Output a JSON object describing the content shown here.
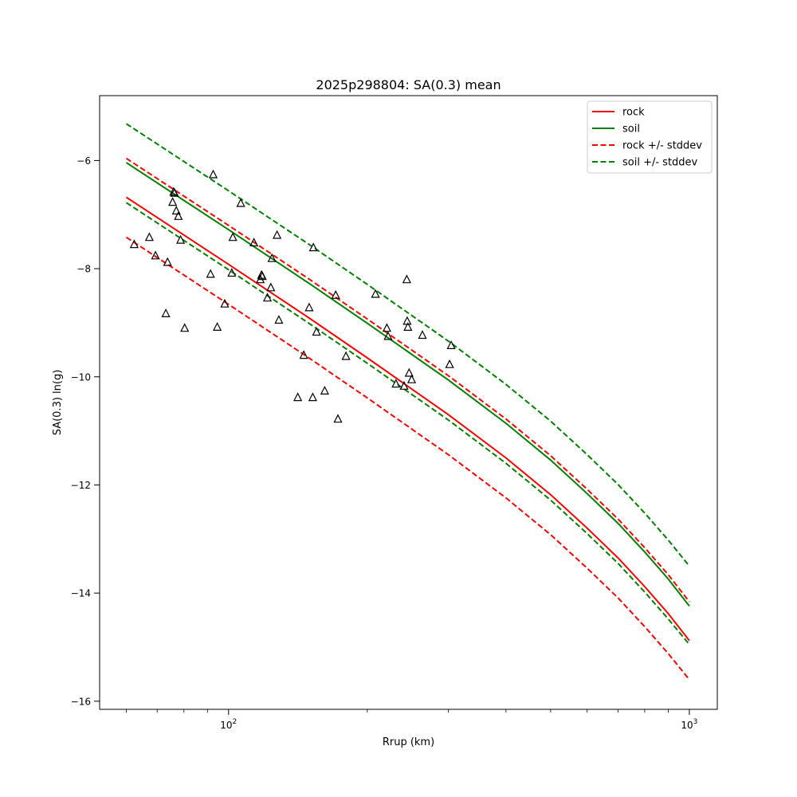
{
  "chart_data": {
    "type": "scatter",
    "title": "2025p298804: SA(0.3) mean",
    "xlabel": "Rrup (km)",
    "ylabel": "SA(0.3) ln(g)",
    "xscale": "log",
    "xlim": [
      52.5,
      1150
    ],
    "ylim": [
      -16.15,
      -4.8
    ],
    "x_tick_labels": [
      {
        "value": 100,
        "base": "10",
        "exp": "2"
      },
      {
        "value": 1000,
        "base": "10",
        "exp": "3"
      }
    ],
    "y_ticks": [
      -16,
      -14,
      -12,
      -10,
      -8,
      -6
    ],
    "y_tick_labels": [
      "−16",
      "−14",
      "−12",
      "−10",
      "−8",
      "−6"
    ],
    "grid": false,
    "legend_position": "top-right",
    "series": [
      {
        "name": "rock",
        "color": "#ff0000",
        "dash": "solid",
        "x": [
          60,
          100,
          150,
          200,
          300,
          400,
          500,
          600,
          700,
          800,
          900,
          1000
        ],
        "y": [
          -6.68,
          -7.92,
          -8.92,
          -9.65,
          -10.7,
          -11.5,
          -12.18,
          -12.8,
          -13.35,
          -13.88,
          -14.38,
          -14.88
        ]
      },
      {
        "name": "soil",
        "color": "#008000",
        "dash": "solid",
        "x": [
          60,
          100,
          150,
          200,
          300,
          400,
          500,
          600,
          700,
          800,
          900,
          1000
        ],
        "y": [
          -6.04,
          -7.28,
          -8.28,
          -9.01,
          -10.06,
          -10.86,
          -11.54,
          -12.16,
          -12.71,
          -13.24,
          -13.74,
          -14.24
        ]
      },
      {
        "name": "rock +/- stddev",
        "color": "#ff0000",
        "dash": "dashed",
        "x": [
          60,
          100,
          150,
          200,
          300,
          400,
          500,
          600,
          700,
          800,
          900,
          1000
        ],
        "y": [
          -5.96,
          -7.2,
          -8.2,
          -8.93,
          -9.98,
          -10.78,
          -11.46,
          -12.08,
          -12.63,
          -13.16,
          -13.66,
          -14.16
        ]
      },
      {
        "name": "",
        "color": "#ff0000",
        "dash": "dashed",
        "x": [
          60,
          100,
          150,
          200,
          300,
          400,
          500,
          600,
          700,
          800,
          900,
          1000
        ],
        "y": [
          -7.42,
          -8.66,
          -9.66,
          -10.39,
          -11.44,
          -12.24,
          -12.92,
          -13.54,
          -14.09,
          -14.62,
          -15.12,
          -15.6
        ]
      },
      {
        "name": "soil +/- stddev",
        "color": "#008000",
        "dash": "dashed",
        "x": [
          60,
          100,
          150,
          200,
          300,
          400,
          500,
          600,
          700,
          800,
          900,
          1000
        ],
        "y": [
          -5.32,
          -6.56,
          -7.56,
          -8.29,
          -9.34,
          -10.14,
          -10.82,
          -11.44,
          -11.99,
          -12.52,
          -13.02,
          -13.5
        ]
      },
      {
        "name": "",
        "color": "#008000",
        "dash": "dashed",
        "x": [
          60,
          100,
          150,
          200,
          300,
          400,
          500,
          600,
          700,
          800,
          900,
          1000
        ],
        "y": [
          -6.78,
          -8.02,
          -9.02,
          -9.75,
          -10.8,
          -11.6,
          -12.28,
          -12.9,
          -13.45,
          -13.98,
          -14.48,
          -14.95
        ]
      }
    ],
    "observations": {
      "marker": "open-triangle",
      "color": "#000000",
      "points": [
        [
          62.4,
          -7.55
        ],
        [
          67.3,
          -7.42
        ],
        [
          69.4,
          -7.76
        ],
        [
          73.1,
          -8.83
        ],
        [
          73.7,
          -7.88
        ],
        [
          75.6,
          -6.77
        ],
        [
          76.0,
          -6.58
        ],
        [
          76.3,
          -6.6
        ],
        [
          77.0,
          -6.93
        ],
        [
          77.8,
          -7.03
        ],
        [
          78.7,
          -7.47
        ],
        [
          80.3,
          -9.1
        ],
        [
          91.4,
          -8.1
        ],
        [
          92.6,
          -6.26
        ],
        [
          94.5,
          -9.08
        ],
        [
          98.1,
          -8.65
        ],
        [
          101.6,
          -8.08
        ],
        [
          102.2,
          -7.42
        ],
        [
          106.3,
          -6.79
        ],
        [
          113.5,
          -7.52
        ],
        [
          117.2,
          -8.2
        ],
        [
          117.9,
          -8.12
        ],
        [
          118.4,
          -8.14
        ],
        [
          121.4,
          -8.54
        ],
        [
          123.5,
          -8.35
        ],
        [
          124.2,
          -7.81
        ],
        [
          127.4,
          -7.38
        ],
        [
          128.6,
          -8.95
        ],
        [
          141.3,
          -10.38
        ],
        [
          145.6,
          -9.6
        ],
        [
          149.6,
          -8.72
        ],
        [
          152.3,
          -10.38
        ],
        [
          152.8,
          -7.61
        ],
        [
          155.2,
          -9.17
        ],
        [
          161.7,
          -10.26
        ],
        [
          170.8,
          -8.49
        ],
        [
          172.7,
          -10.78
        ],
        [
          179.8,
          -9.62
        ],
        [
          208.4,
          -8.47
        ],
        [
          220.6,
          -9.1
        ],
        [
          221.9,
          -9.25
        ],
        [
          230.8,
          -10.13
        ],
        [
          240.4,
          -10.17
        ],
        [
          243.7,
          -8.2
        ],
        [
          244.2,
          -8.97
        ],
        [
          245.0,
          -9.08
        ],
        [
          246.5,
          -9.93
        ],
        [
          249.7,
          -10.05
        ],
        [
          263.5,
          -9.23
        ],
        [
          301.8,
          -9.77
        ],
        [
          304.2,
          -9.42
        ]
      ]
    }
  }
}
